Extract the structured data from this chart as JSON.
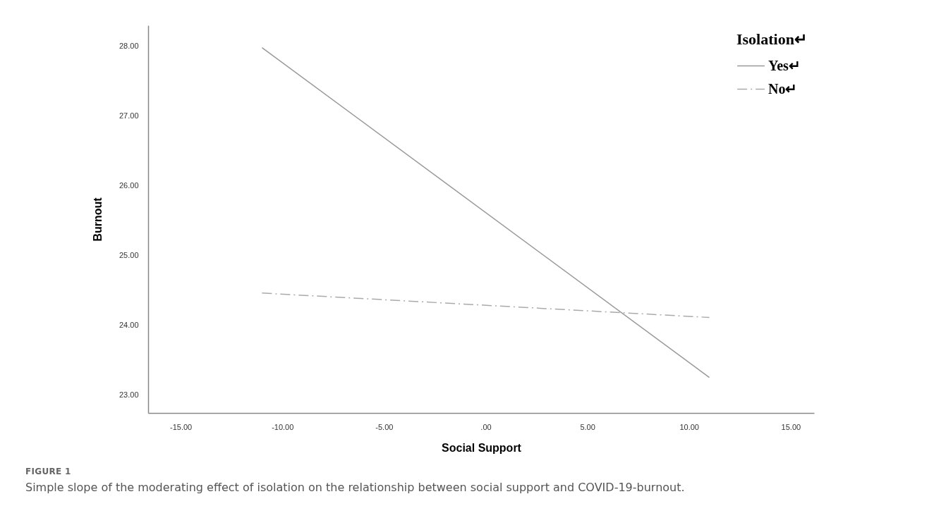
{
  "chart_data": {
    "type": "line",
    "xlabel": "Social Support",
    "ylabel": "Burnout",
    "legend_title": "Isolation↵",
    "xlim": [
      -16.6,
      16.15
    ],
    "ylim": [
      22.74,
      28.3
    ],
    "xticks": [
      {
        "value": -15,
        "label": "-15.00"
      },
      {
        "value": -10,
        "label": "-10.00"
      },
      {
        "value": -5,
        "label": "-5.00"
      },
      {
        "value": 0,
        "label": ".00"
      },
      {
        "value": 5,
        "label": "5.00"
      },
      {
        "value": 10,
        "label": "10.00"
      },
      {
        "value": 15,
        "label": "15.00"
      }
    ],
    "yticks": [
      {
        "value": 23,
        "label": "23.00"
      },
      {
        "value": 24,
        "label": "24.00"
      },
      {
        "value": 25,
        "label": "25.00"
      },
      {
        "value": 26,
        "label": "26.00"
      },
      {
        "value": 27,
        "label": "27.00"
      },
      {
        "value": 28,
        "label": "28.00"
      }
    ],
    "series": [
      {
        "name": "Yes↵",
        "color": "#999999",
        "line_style": "solid",
        "values": [
          27.98,
          23.25
        ]
      },
      {
        "name": "No↵",
        "color": "#aaaaaa",
        "line_style": "dashed",
        "values": [
          24.46,
          24.11
        ]
      }
    ],
    "x": [
      -11,
      11
    ],
    "legend": "top right",
    "grid": false,
    "annotations": [
      "FIGURE 1",
      "Simple slope of the moderating effect of isolation on the relationship between social support and COVID-19-burnout."
    ]
  }
}
